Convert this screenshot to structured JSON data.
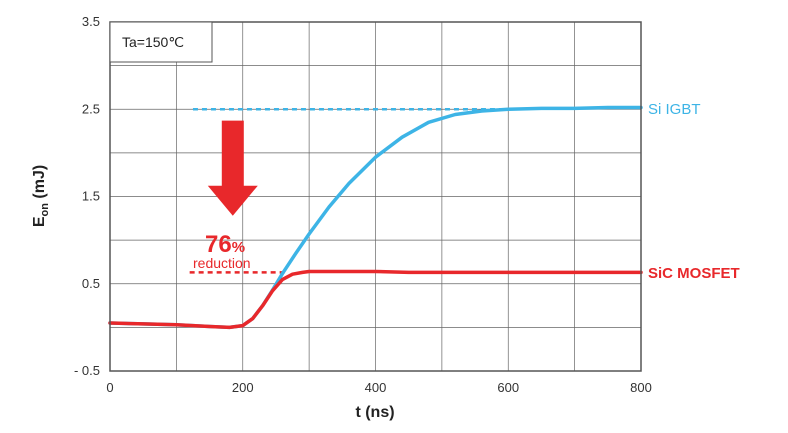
{
  "chart_data": {
    "type": "line",
    "xlabel": "t (ns)",
    "ylabel_main": "E",
    "ylabel_sub": "on",
    "ylabel_unit": " (mJ)",
    "xlim": [
      0,
      800
    ],
    "ylim": [
      -0.5,
      3.5
    ],
    "x_ticks": [
      "0",
      "200",
      "400",
      "600",
      "800"
    ],
    "y_ticks": [
      "- 0.5",
      "0.5",
      "1.5",
      "2.5",
      "3.5"
    ],
    "x_tick_values": [
      0,
      200,
      400,
      600,
      800
    ],
    "y_tick_values": [
      -0.5,
      0.5,
      1.5,
      2.5,
      3.5
    ],
    "grid": true,
    "condition_label": "Ta=150℃",
    "series": [
      {
        "name": "Si IGBT",
        "color": "#3db4e6",
        "x": [
          0,
          50,
          100,
          150,
          180,
          200,
          215,
          230,
          245,
          260,
          280,
          300,
          330,
          360,
          400,
          440,
          480,
          520,
          560,
          600,
          650,
          700,
          750,
          800
        ],
        "y": [
          0.05,
          0.04,
          0.03,
          0.01,
          0.0,
          0.02,
          0.1,
          0.25,
          0.43,
          0.62,
          0.85,
          1.07,
          1.38,
          1.65,
          1.95,
          2.18,
          2.35,
          2.44,
          2.48,
          2.5,
          2.51,
          2.51,
          2.52,
          2.52
        ]
      },
      {
        "name": "SiC MOSFET",
        "color": "#e8282b",
        "x": [
          0,
          50,
          100,
          150,
          180,
          200,
          215,
          230,
          245,
          260,
          275,
          290,
          300,
          350,
          400,
          450,
          500,
          550,
          600,
          650,
          700,
          750,
          800
        ],
        "y": [
          0.05,
          0.04,
          0.03,
          0.01,
          0.0,
          0.02,
          0.1,
          0.25,
          0.42,
          0.55,
          0.61,
          0.63,
          0.64,
          0.64,
          0.64,
          0.63,
          0.63,
          0.63,
          0.63,
          0.63,
          0.63,
          0.63,
          0.63
        ]
      }
    ],
    "annotations": {
      "percent_number": "76",
      "percent_sign": "%",
      "reduction_word": "reduction",
      "igbt_ref_level": 2.5,
      "igbt_ref_x": [
        125,
        590
      ],
      "sic_ref_level": 0.63,
      "sic_ref_x": [
        120,
        265
      ],
      "arrow_x": 185,
      "arrow_from": 2.37,
      "arrow_to": 1.28,
      "arrow_color": "#e8282b"
    }
  }
}
